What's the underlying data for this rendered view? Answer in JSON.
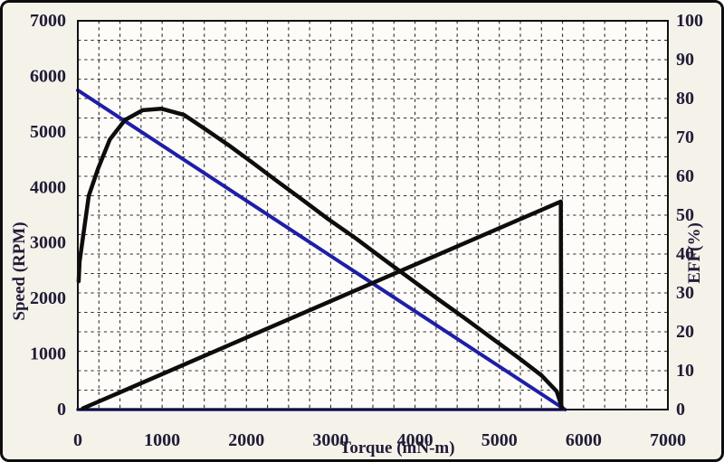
{
  "chart_data": {
    "type": "line",
    "title": "",
    "legend": "none",
    "grid": "dashed-dense",
    "x_axis": {
      "label": "Torque (mN-m)",
      "min": 0,
      "max": 7000,
      "ticks": [
        0,
        1000,
        2000,
        3000,
        4000,
        5000,
        6000,
        7000
      ],
      "minor_grid_step": 250
    },
    "y_axis_left": {
      "label": "Speed (RPM)",
      "min": 0,
      "max": 7000,
      "ticks": [
        0,
        1000,
        2000,
        3000,
        4000,
        5000,
        6000,
        7000
      ]
    },
    "y_axis_right": {
      "label": "EFF(%)",
      "min": 0,
      "max": 100,
      "ticks": [
        0,
        10,
        20,
        30,
        40,
        50,
        60,
        70,
        80,
        90,
        100
      ],
      "minor_grid_step": 5
    },
    "series": [
      {
        "name": "speed-torque-line",
        "axis": "left",
        "color": "#1e1ea8",
        "width": 4,
        "points": [
          [
            0,
            5750
          ],
          [
            5780,
            0
          ]
        ]
      },
      {
        "name": "speed-zero-baseline",
        "axis": "left",
        "color": "#1e1ea8",
        "width": 3.5,
        "points": [
          [
            0,
            0
          ],
          [
            5750,
            0
          ]
        ]
      },
      {
        "name": "efficiency-curve",
        "axis": "right",
        "color": "#0d0d0d",
        "width": 4.5,
        "points": [
          [
            10,
            33
          ],
          [
            20,
            38
          ],
          [
            130,
            55
          ],
          [
            240,
            62
          ],
          [
            380,
            69.5
          ],
          [
            560,
            74.5
          ],
          [
            770,
            77
          ],
          [
            990,
            77.4
          ],
          [
            1260,
            75.8
          ],
          [
            1520,
            72
          ],
          [
            1790,
            68
          ],
          [
            2060,
            63.7
          ],
          [
            2330,
            59.3
          ],
          [
            2650,
            54.2
          ],
          [
            2970,
            49
          ],
          [
            3300,
            44
          ],
          [
            3620,
            38.8
          ],
          [
            3940,
            33.7
          ],
          [
            4260,
            28.6
          ],
          [
            4590,
            23.5
          ],
          [
            4910,
            18.4
          ],
          [
            5230,
            13.3
          ],
          [
            5500,
            8.8
          ],
          [
            5680,
            4.7
          ],
          [
            5745,
            0.5
          ]
        ]
      },
      {
        "name": "current-power-line",
        "axis": "right",
        "color": "#0d0d0d",
        "width": 4.5,
        "points": [
          [
            60,
            0.3
          ],
          [
            5730,
            53.5
          ],
          [
            5735,
            0.3
          ]
        ]
      }
    ],
    "colors": {
      "page_background": "#f5f2ea",
      "plot_background": "#fdfcf8",
      "grid": "#1c1c1c",
      "frame": "#111111",
      "text": "#211b36",
      "outer_border": "#0d0d0d"
    }
  }
}
